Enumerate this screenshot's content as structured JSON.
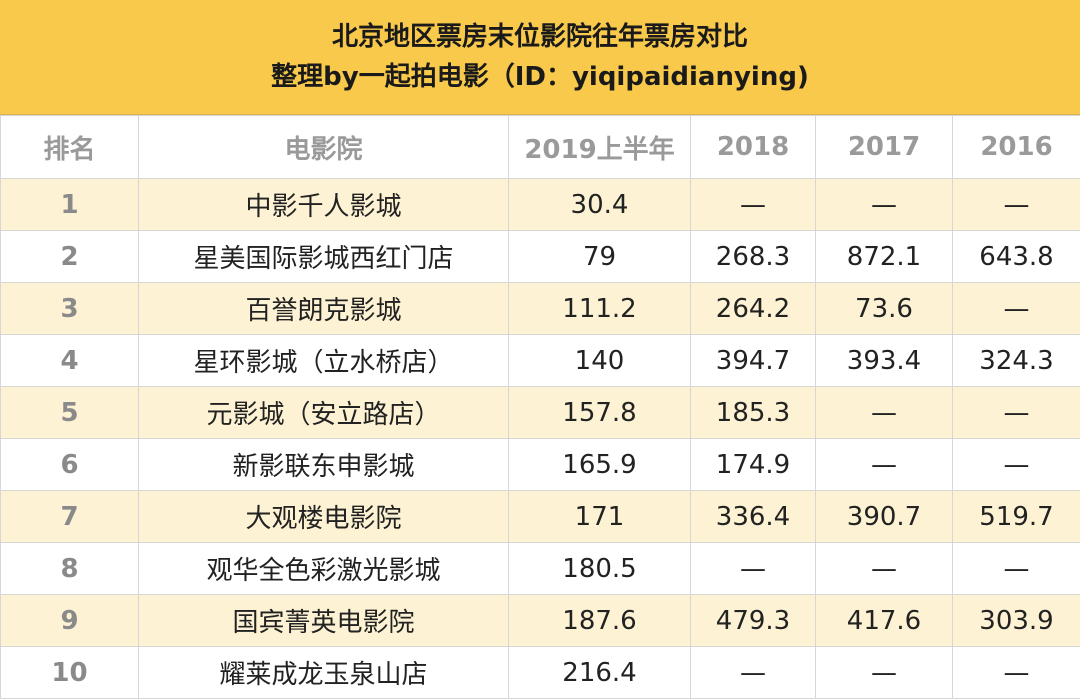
{
  "header": {
    "title": "北京地区票房末位影院往年票房对比",
    "subtitle": "整理by一起拍电影（ID：yiqipaidianying)"
  },
  "table": {
    "columns": [
      "排名",
      "电影院",
      "2019上半年",
      "2018",
      "2017",
      "2016"
    ],
    "rows": [
      [
        1,
        "中影千人影城",
        30.4,
        "—",
        "—",
        "—"
      ],
      [
        2,
        "星美国际影城西红门店",
        79,
        268.3,
        872.1,
        643.8
      ],
      [
        3,
        "百誉朗克影城",
        111.2,
        264.2,
        73.6,
        "—"
      ],
      [
        4,
        "星环影城（立水桥店）",
        140,
        394.7,
        393.4,
        324.3
      ],
      [
        5,
        "元影城（安立路店）",
        157.8,
        185.3,
        "—",
        "—"
      ],
      [
        6,
        "新影联东申影城",
        165.9,
        174.9,
        "—",
        "—"
      ],
      [
        7,
        "大观楼电影院",
        171,
        336.4,
        390.7,
        519.7
      ],
      [
        8,
        "观华全色彩激光影城",
        180.5,
        "—",
        "—",
        "—"
      ],
      [
        9,
        "国宾菁英电影院",
        187.6,
        479.3,
        417.6,
        303.9
      ],
      [
        10,
        "耀莱成龙玉泉山店",
        216.4,
        "—",
        "—",
        "—"
      ]
    ]
  }
}
